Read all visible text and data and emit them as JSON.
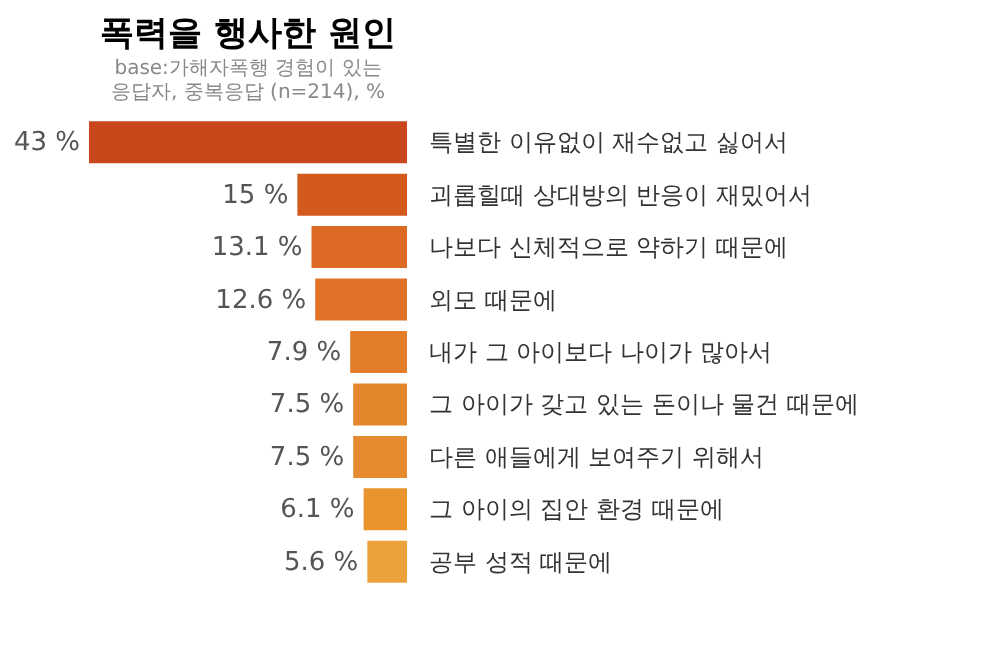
{
  "chart_data": {
    "type": "bar",
    "orientation": "horizontal",
    "title": "폭력을 행사한 원인",
    "subtitle": "base:가해자폭행 경험이 있는\n응답자, 중복응답 (n=214), %",
    "categories": [
      "특별한 이유없이 재수없고 싫어서",
      "괴롭힐때 상대방의 반응이 재밌어서",
      "나보다 신체적으로 약하기 때문에",
      "외모 때문에",
      "내가 그 아이보다 나이가 많아서",
      "그 아이가 갖고 있는 돈이나 물건 때문에",
      "다른 애들에게 보여주기 위해서",
      "그 아이의 집안 환경 때문에",
      "공부 성적 때문에"
    ],
    "values": [
      43,
      15,
      13.1,
      12.6,
      7.9,
      7.5,
      7.5,
      6.1,
      5.6
    ],
    "value_labels": [
      "43 %",
      "15 %",
      "13.1 %",
      "12.6 %",
      "7.9 %",
      "7.5 %",
      "7.5 %",
      "6.1 %",
      "5.6 %"
    ],
    "colors": [
      "#c9471a",
      "#d35a1e",
      "#dc6a24",
      "#df7226",
      "#e47d2a",
      "#e4862c",
      "#e58a2e",
      "#e8952f",
      "#eba23a"
    ],
    "grid": false
  }
}
